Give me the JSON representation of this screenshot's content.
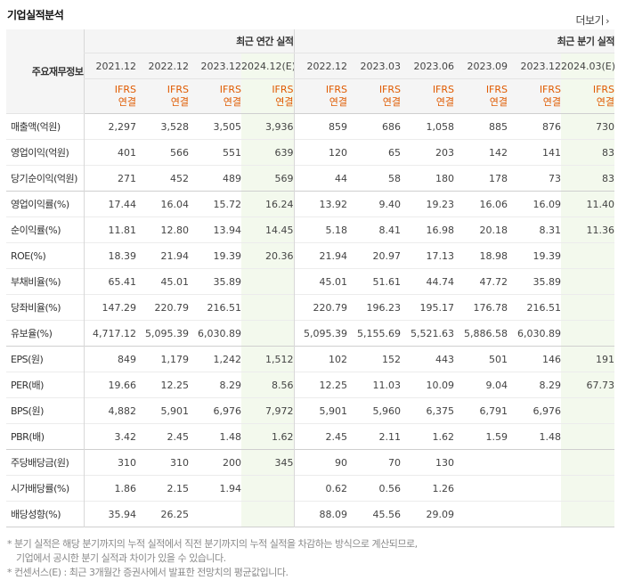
{
  "header": {
    "title": "기업실적분석",
    "more_label": "더보기",
    "more_arrow": "›"
  },
  "table": {
    "corner_label": "주요재무정보",
    "annual_group": "최근 연간 실적",
    "quarter_group": "최근 분기 실적",
    "periods": [
      "2021.12",
      "2022.12",
      "2023.12",
      "2024.12(E)",
      "2022.12",
      "2023.03",
      "2023.06",
      "2023.09",
      "2023.12",
      "2024.03(E)"
    ],
    "standard": [
      "IFRS",
      "IFRS",
      "IFRS",
      "IFRS",
      "IFRS",
      "IFRS",
      "IFRS",
      "IFRS",
      "IFRS",
      "IFRS"
    ],
    "basis": [
      "연결",
      "연결",
      "연결",
      "연결",
      "연결",
      "연결",
      "연결",
      "연결",
      "연결",
      "연결"
    ],
    "rows": [
      {
        "label": "매출액(억원)",
        "values": [
          "2,297",
          "3,528",
          "3,505",
          "3,936",
          "859",
          "686",
          "1,058",
          "885",
          "876",
          "730"
        ]
      },
      {
        "label": "영업이익(억원)",
        "values": [
          "401",
          "566",
          "551",
          "639",
          "120",
          "65",
          "203",
          "142",
          "141",
          "83"
        ]
      },
      {
        "label": "당기순이익(억원)",
        "values": [
          "271",
          "452",
          "489",
          "569",
          "44",
          "58",
          "180",
          "178",
          "73",
          "83"
        ]
      },
      {
        "label": "영업이익률(%)",
        "values": [
          "17.44",
          "16.04",
          "15.72",
          "16.24",
          "13.92",
          "9.40",
          "19.23",
          "16.06",
          "16.09",
          "11.40"
        ]
      },
      {
        "label": "순이익률(%)",
        "values": [
          "11.81",
          "12.80",
          "13.94",
          "14.45",
          "5.18",
          "8.41",
          "16.98",
          "20.18",
          "8.31",
          "11.36"
        ]
      },
      {
        "label": "ROE(%)",
        "values": [
          "18.39",
          "21.94",
          "19.39",
          "20.36",
          "21.94",
          "20.97",
          "17.13",
          "18.98",
          "19.39",
          ""
        ]
      },
      {
        "label": "부채비율(%)",
        "values": [
          "65.41",
          "45.01",
          "35.89",
          "",
          "45.01",
          "51.61",
          "44.74",
          "47.72",
          "35.89",
          ""
        ]
      },
      {
        "label": "당좌비율(%)",
        "values": [
          "147.29",
          "220.79",
          "216.51",
          "",
          "220.79",
          "196.23",
          "195.17",
          "176.78",
          "216.51",
          ""
        ]
      },
      {
        "label": "유보율(%)",
        "values": [
          "4,717.12",
          "5,095.39",
          "6,030.89",
          "",
          "5,095.39",
          "5,155.69",
          "5,521.63",
          "5,886.58",
          "6,030.89",
          ""
        ]
      },
      {
        "label": "EPS(원)",
        "values": [
          "849",
          "1,179",
          "1,242",
          "1,512",
          "102",
          "152",
          "443",
          "501",
          "146",
          "191"
        ]
      },
      {
        "label": "PER(배)",
        "values": [
          "19.66",
          "12.25",
          "8.29",
          "8.56",
          "12.25",
          "11.03",
          "10.09",
          "9.04",
          "8.29",
          "67.73"
        ]
      },
      {
        "label": "BPS(원)",
        "values": [
          "4,882",
          "5,901",
          "6,976",
          "7,972",
          "5,901",
          "5,960",
          "6,375",
          "6,791",
          "6,976",
          ""
        ]
      },
      {
        "label": "PBR(배)",
        "values": [
          "3.42",
          "2.45",
          "1.48",
          "1.62",
          "2.45",
          "2.11",
          "1.62",
          "1.59",
          "1.48",
          ""
        ]
      },
      {
        "label": "주당배당금(원)",
        "values": [
          "310",
          "310",
          "200",
          "345",
          "90",
          "70",
          "130",
          "",
          "",
          ""
        ]
      },
      {
        "label": "시가배당률(%)",
        "values": [
          "1.86",
          "2.15",
          "1.94",
          "",
          "0.62",
          "0.56",
          "1.26",
          "",
          "",
          ""
        ]
      },
      {
        "label": "배당성향(%)",
        "values": [
          "35.94",
          "26.25",
          "",
          "",
          "88.09",
          "45.56",
          "29.09",
          "",
          "",
          ""
        ]
      }
    ],
    "group_end_rows": [
      2,
      8,
      12,
      15
    ]
  },
  "notes": [
    "* 분기 실적은 해당 분기까지의 누적 실적에서 직전 분기까지의 누적 실적을 차감하는 방식으로 계산되므로,",
    "  기업에서 공시한 분기 실적과 차이가 있을 수 있습니다.",
    "* 컨센서스(E) : 최근 3개월간 증권사에서 발표한 전망치의 평균값입니다."
  ],
  "colors": {
    "estimate_bg": "#f3f9ed",
    "ifrs_text": "#e05a00",
    "header_bg": "#f5f5f5"
  }
}
